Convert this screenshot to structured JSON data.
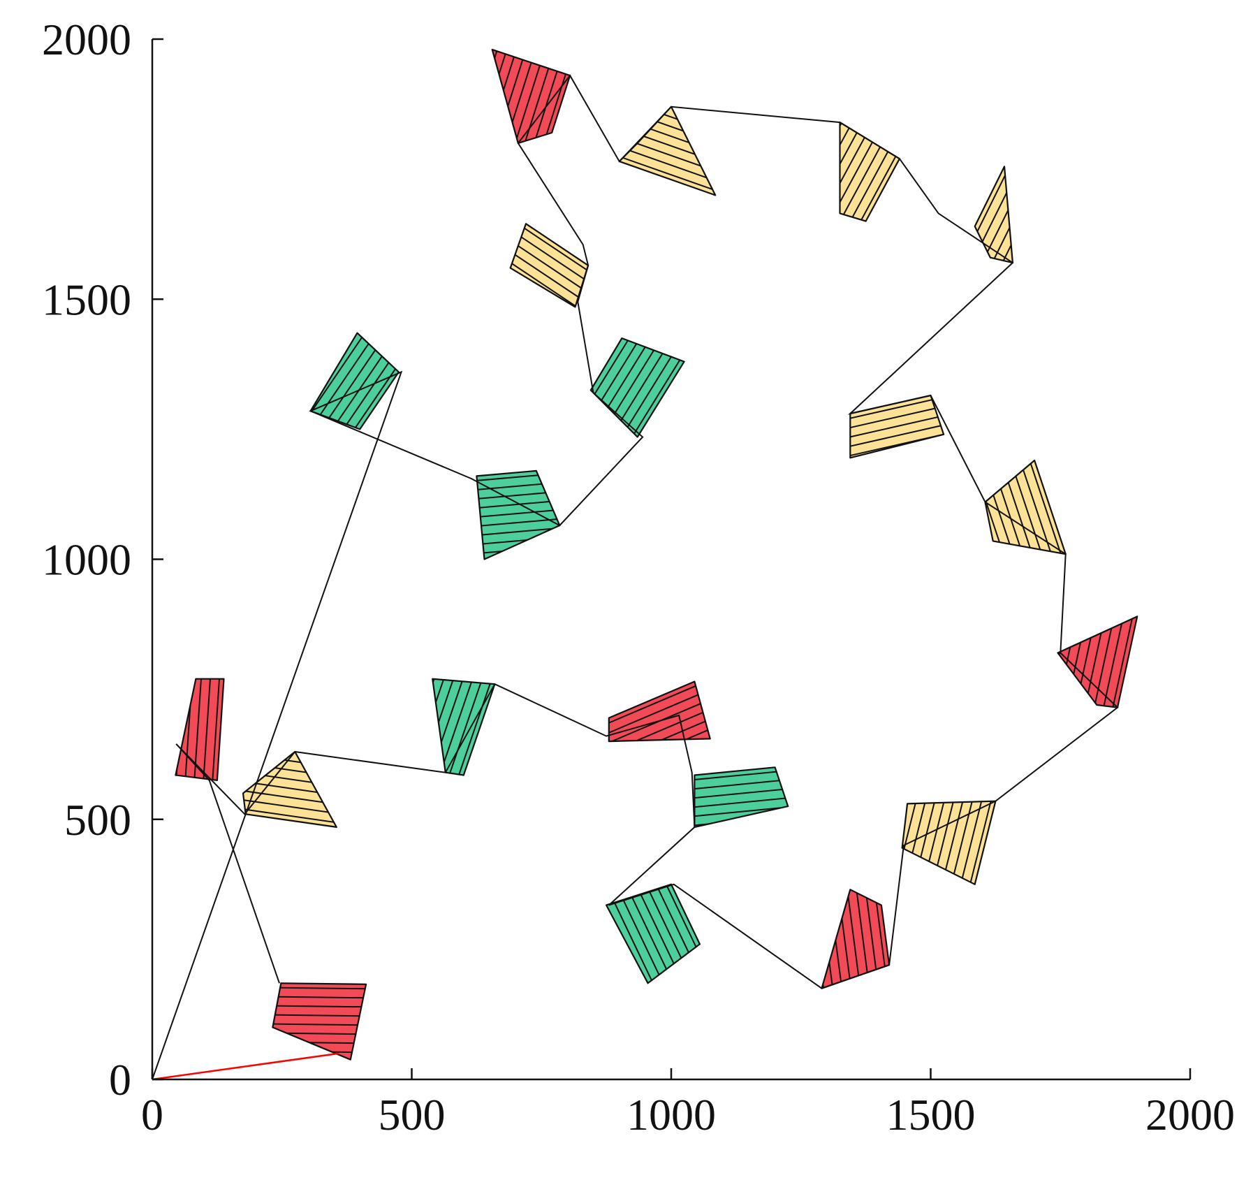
{
  "chart_data": {
    "type": "line",
    "title": "",
    "xlabel": "",
    "ylabel": "",
    "xlim": [
      0,
      2000
    ],
    "ylim": [
      0,
      2000
    ],
    "xticks": [
      "0",
      "500",
      "1000",
      "1500",
      "2000"
    ],
    "yticks": [
      "0",
      "500",
      "1000",
      "1500",
      "2000"
    ],
    "grid": false,
    "colors": {
      "red": "#f24a57",
      "yellow": "#fce296",
      "green": "#4ccf9a",
      "line": "#111111",
      "start_line": "#ff0000"
    },
    "fields": [
      {
        "color": "red",
        "hatch": "horizontal",
        "polygon": [
          [
            248,
            185
          ],
          [
            412,
            183
          ],
          [
            382,
            38
          ],
          [
            232,
            100
          ]
        ]
      },
      {
        "color": "red",
        "hatch": "vertical",
        "polygon": [
          [
            84,
            770
          ],
          [
            138,
            770
          ],
          [
            125,
            575
          ],
          [
            45,
            585
          ]
        ]
      },
      {
        "color": "yellow",
        "hatch": "horizontal",
        "polygon": [
          [
            275,
            630
          ],
          [
            355,
            485
          ],
          [
            180,
            510
          ],
          [
            175,
            550
          ]
        ]
      },
      {
        "color": "green",
        "hatch": "vertical",
        "polygon": [
          [
            540,
            770
          ],
          [
            660,
            760
          ],
          [
            600,
            585
          ],
          [
            565,
            590
          ]
        ]
      },
      {
        "color": "red",
        "hatch": "horizontal",
        "polygon": [
          [
            880,
            695
          ],
          [
            1045,
            765
          ],
          [
            1075,
            655
          ],
          [
            880,
            650
          ]
        ]
      },
      {
        "color": "green",
        "hatch": "horizontal",
        "polygon": [
          [
            1045,
            585
          ],
          [
            1200,
            600
          ],
          [
            1225,
            525
          ],
          [
            1045,
            485
          ]
        ]
      },
      {
        "color": "green",
        "hatch": "vertical",
        "polygon": [
          [
            875,
            335
          ],
          [
            1000,
            375
          ],
          [
            1055,
            260
          ],
          [
            955,
            185
          ]
        ]
      },
      {
        "color": "red",
        "hatch": "vertical",
        "polygon": [
          [
            1345,
            365
          ],
          [
            1405,
            335
          ],
          [
            1420,
            220
          ],
          [
            1290,
            175
          ]
        ]
      },
      {
        "color": "yellow",
        "hatch": "vertical",
        "polygon": [
          [
            1455,
            530
          ],
          [
            1625,
            535
          ],
          [
            1585,
            375
          ],
          [
            1445,
            445
          ]
        ]
      },
      {
        "color": "red",
        "hatch": "vertical",
        "polygon": [
          [
            1745,
            820
          ],
          [
            1898,
            890
          ],
          [
            1860,
            715
          ],
          [
            1820,
            720
          ]
        ]
      },
      {
        "color": "yellow",
        "hatch": "vertical",
        "polygon": [
          [
            1605,
            1110
          ],
          [
            1700,
            1190
          ],
          [
            1760,
            1010
          ],
          [
            1620,
            1035
          ]
        ]
      },
      {
        "color": "yellow",
        "hatch": "horizontal",
        "polygon": [
          [
            1345,
            1280
          ],
          [
            1500,
            1315
          ],
          [
            1525,
            1240
          ],
          [
            1345,
            1195
          ]
        ]
      },
      {
        "color": "yellow",
        "hatch": "vertical",
        "polygon": [
          [
            1585,
            1640
          ],
          [
            1642,
            1755
          ],
          [
            1658,
            1570
          ],
          [
            1615,
            1580
          ]
        ]
      },
      {
        "color": "yellow",
        "hatch": "vertical",
        "polygon": [
          [
            1325,
            1840
          ],
          [
            1440,
            1770
          ],
          [
            1375,
            1650
          ],
          [
            1325,
            1665
          ]
        ]
      },
      {
        "color": "yellow",
        "hatch": "horizontal",
        "polygon": [
          [
            1000,
            1870
          ],
          [
            1085,
            1700
          ],
          [
            900,
            1765
          ],
          [
            935,
            1800
          ]
        ]
      },
      {
        "color": "red",
        "hatch": "vertical",
        "polygon": [
          [
            655,
            1980
          ],
          [
            805,
            1930
          ],
          [
            770,
            1820
          ],
          [
            705,
            1800
          ]
        ]
      },
      {
        "color": "yellow",
        "hatch": "horizontal",
        "polygon": [
          [
            720,
            1645
          ],
          [
            840,
            1565
          ],
          [
            815,
            1485
          ],
          [
            690,
            1560
          ]
        ]
      },
      {
        "color": "green",
        "hatch": "vertical",
        "polygon": [
          [
            905,
            1425
          ],
          [
            1025,
            1380
          ],
          [
            935,
            1235
          ],
          [
            845,
            1325
          ]
        ]
      },
      {
        "color": "green",
        "hatch": "vertical",
        "polygon": [
          [
            395,
            1435
          ],
          [
            475,
            1360
          ],
          [
            400,
            1250
          ],
          [
            305,
            1285
          ]
        ]
      },
      {
        "color": "green",
        "hatch": "horizontal",
        "polygon": [
          [
            625,
            1160
          ],
          [
            740,
            1170
          ],
          [
            785,
            1065
          ],
          [
            640,
            1000
          ]
        ]
      }
    ],
    "route": [
      [
        0,
        0
      ],
      [
        480,
        1360
      ],
      [
        305,
        1285
      ],
      [
        615,
        1155
      ],
      [
        785,
        1065
      ],
      [
        945,
        1235
      ],
      [
        850,
        1320
      ],
      [
        820,
        1495
      ],
      [
        840,
        1565
      ],
      [
        830,
        1605
      ],
      [
        705,
        1800
      ],
      [
        805,
        1930
      ],
      [
        900,
        1765
      ],
      [
        1000,
        1870
      ],
      [
        1325,
        1840
      ],
      [
        1440,
        1770
      ],
      [
        1515,
        1665
      ],
      [
        1658,
        1570
      ],
      [
        1345,
        1280
      ],
      [
        1500,
        1315
      ],
      [
        1605,
        1110
      ],
      [
        1760,
        1010
      ],
      [
        1750,
        820
      ],
      [
        1860,
        715
      ],
      [
        1625,
        535
      ],
      [
        1448,
        450
      ],
      [
        1420,
        220
      ],
      [
        1290,
        175
      ],
      [
        1005,
        375
      ],
      [
        880,
        335
      ],
      [
        1045,
        485
      ],
      [
        1040,
        590
      ],
      [
        1015,
        700
      ],
      [
        875,
        660
      ],
      [
        660,
        760
      ],
      [
        565,
        590
      ],
      [
        275,
        630
      ],
      [
        178,
        510
      ],
      [
        46,
        645
      ],
      [
        110,
        575
      ],
      [
        245,
        185
      ]
    ],
    "start_segment": [
      [
        0,
        0
      ],
      [
        360,
        50
      ]
    ]
  }
}
